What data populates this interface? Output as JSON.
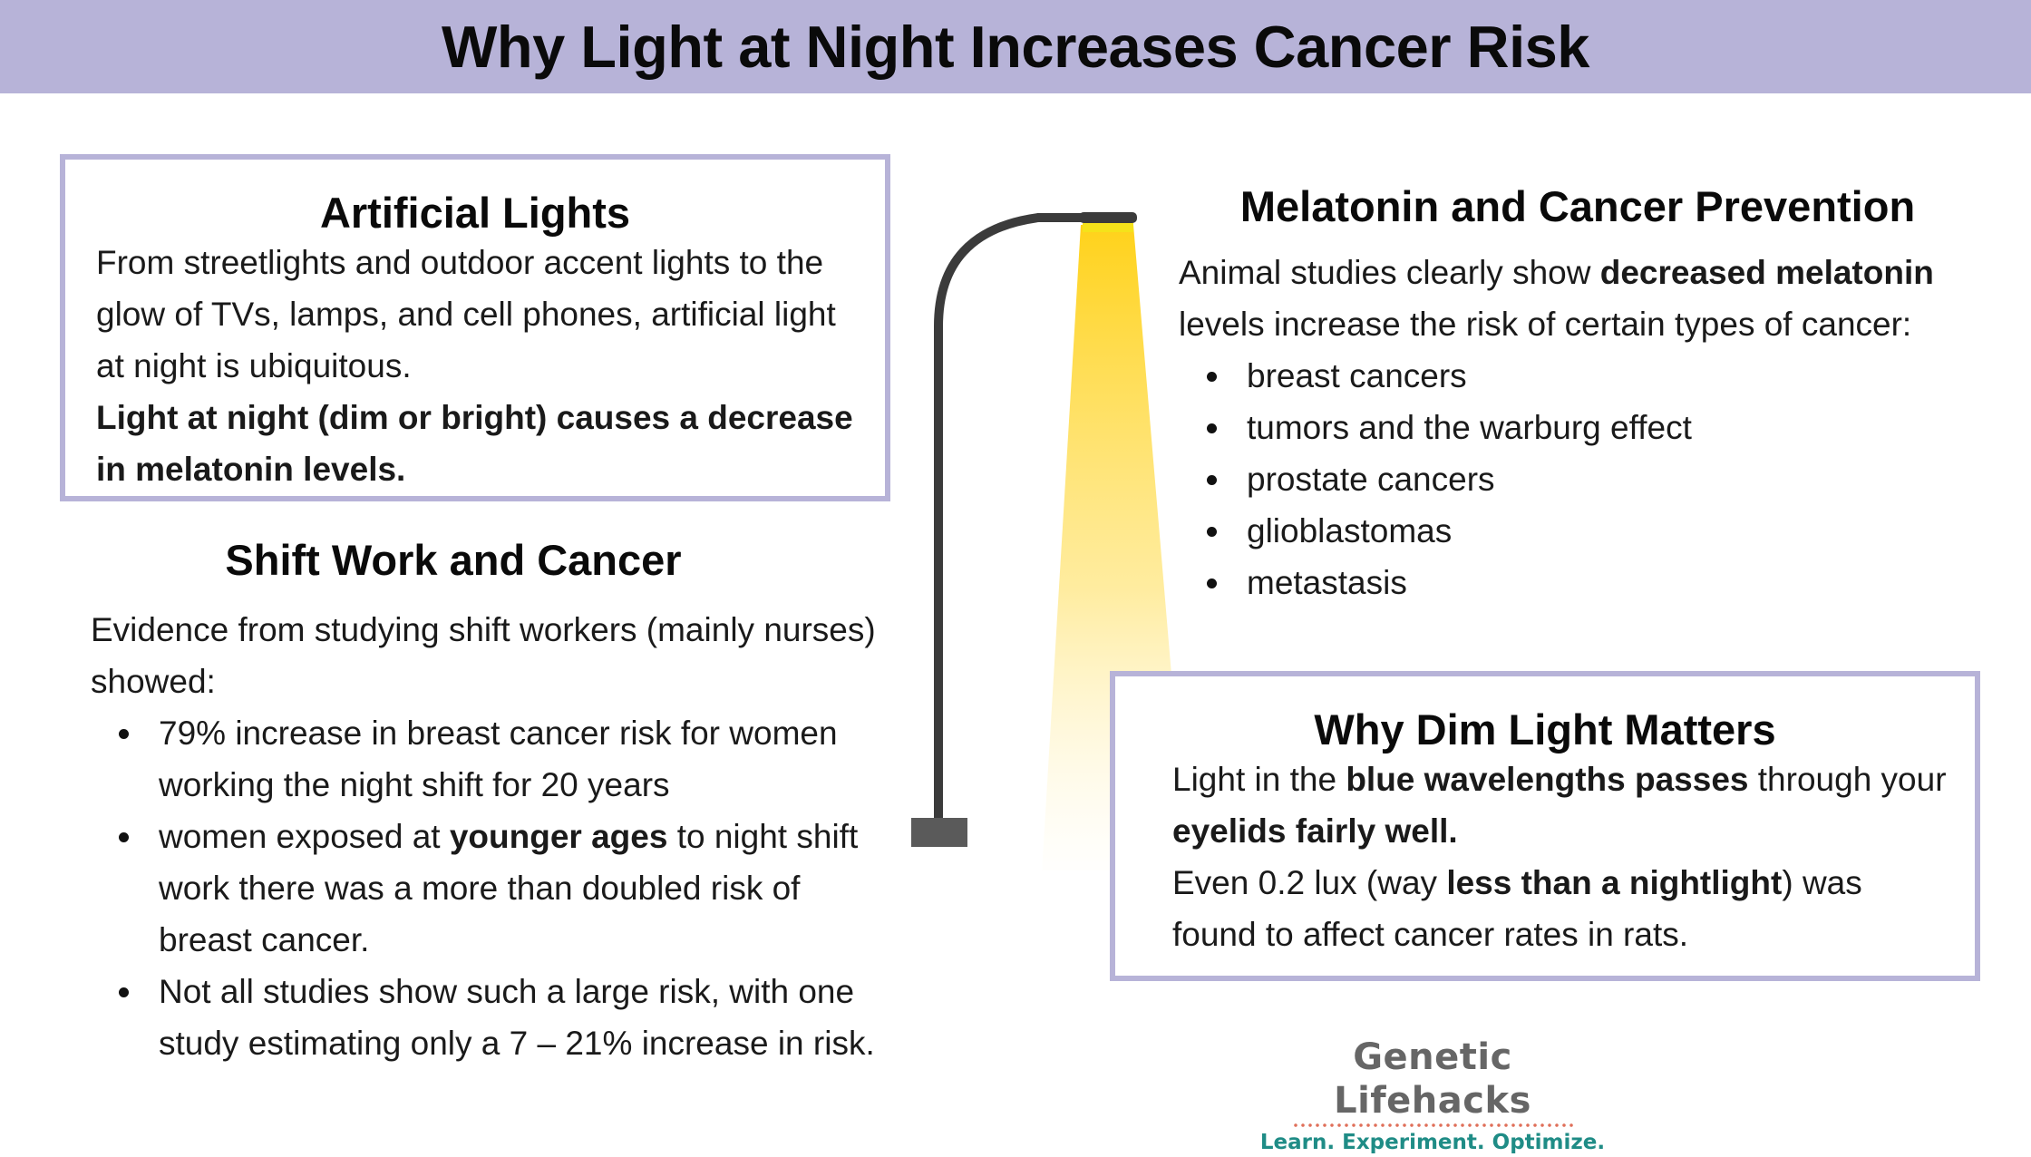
{
  "title": "Why Light at Night Increases Cancer Risk",
  "artificial_lights": {
    "heading": "Artificial Lights",
    "text": "From streetlights and outdoor accent lights to the glow of TVs, lamps, and cell phones, artificial light at night is ubiquitous.",
    "bold_text": "Light at night (dim or bright) causes a decrease in melatonin levels."
  },
  "shift_work": {
    "heading": "Shift Work and Cancer",
    "intro": "Evidence from studying shift workers (mainly nurses) showed:",
    "bullets": [
      {
        "text": "79% increase in breast cancer risk for women working the night shift for 20 years"
      },
      {
        "before": "women exposed at ",
        "bold": "younger ages",
        "after": " to night shift work there was a more than doubled risk of breast cancer."
      },
      {
        "text": "Not all studies show such a large risk, with one study estimating only a 7 – 21% increase in risk."
      }
    ]
  },
  "melatonin": {
    "heading": "Melatonin and Cancer Prevention",
    "intro_before": "Animal studies clearly show ",
    "intro_bold": "decreased melatonin",
    "intro_after": " levels increase the risk of certain types of cancer:",
    "bullets": [
      "breast cancers",
      "tumors and the warburg effect",
      "prostate cancers",
      "glioblastomas",
      "metastasis"
    ]
  },
  "dim_light": {
    "heading": "Why Dim Light Matters",
    "p1_before": "Light in the ",
    "p1_bold": "blue wavelengths passes",
    "p1_after": " through your ",
    "p1_bold2": "eyelids fairly well.",
    "p2_before": "Even 0.2 lux (way ",
    "p2_bold": "less than a nightlight",
    "p2_after": ") was found to affect cancer rates in rats."
  },
  "logo": {
    "name": "Genetic Lifehacks",
    "tagline": "Learn. Experiment. Optimize."
  },
  "colors": {
    "title_bar": "#b7b3d8",
    "box_border": "#b7b3d8",
    "lamp_light": "#ffd21a",
    "logo_tagline": "#1f8c86"
  },
  "icons": [
    "streetlamp-illustration"
  ]
}
